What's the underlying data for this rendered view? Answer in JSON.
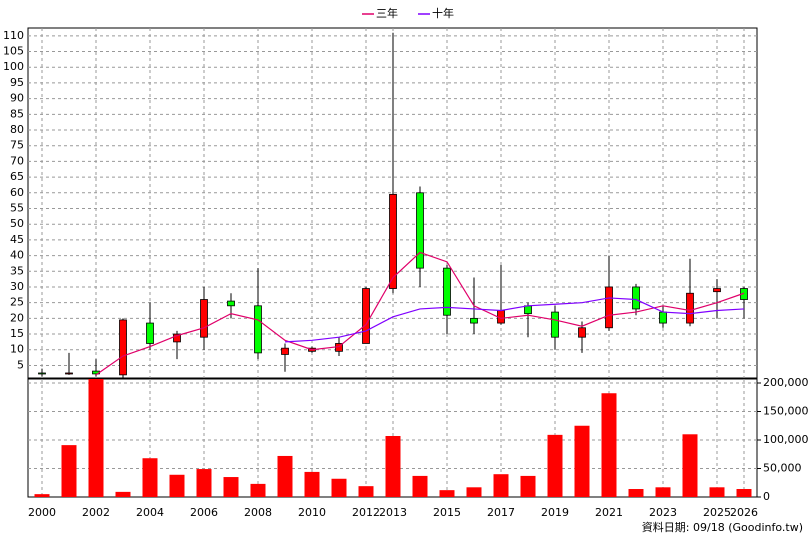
{
  "chart_data": [
    {
      "type": "candlestick",
      "open": [
        2.6,
        2.4,
        3.2,
        2,
        18.5,
        12.5,
        14,
        25.5,
        24,
        8.5,
        9.5,
        9.5,
        12,
        29.5,
        60,
        36,
        20,
        18.5,
        24,
        22,
        14,
        17,
        30,
        22,
        18.5,
        28.5,
        29.5
      ],
      "high": [
        4,
        9,
        7,
        20,
        25,
        16,
        30,
        28,
        36,
        12,
        11,
        14,
        30,
        111,
        62,
        37,
        33,
        37,
        25,
        24,
        19,
        40,
        31,
        24,
        39,
        32.5,
        30
      ],
      "low": [
        1.5,
        2,
        1.5,
        1,
        10,
        7,
        10,
        20,
        7,
        3,
        9,
        8,
        12,
        28,
        30,
        15,
        15,
        18,
        14,
        10,
        9,
        16,
        21,
        17,
        17.5,
        20,
        20
      ],
      "close": [
        2.4,
        2.6,
        2.3,
        19.5,
        12,
        15,
        26,
        24,
        9,
        10.5,
        10.5,
        12,
        29.5,
        59.5,
        36,
        21,
        18.5,
        22.5,
        21.5,
        14,
        17,
        30,
        23,
        18.5,
        28,
        29.5,
        26
      ],
      "up_color": "#ff0000",
      "down_color": "#00ff00",
      "series": [
        {
          "name": "三年",
          "color": "#e0006a",
          "values": [
            null,
            null,
            2,
            8,
            11,
            14.5,
            17,
            21.5,
            19.5,
            13,
            10,
            11,
            18,
            33,
            41,
            38,
            24,
            20,
            21,
            19.5,
            17.5,
            21,
            22,
            24,
            22.5,
            25,
            28
          ]
        },
        {
          "name": "十年",
          "color": "#8000ff",
          "values": [
            null,
            null,
            null,
            null,
            null,
            null,
            null,
            null,
            null,
            12.5,
            13,
            14,
            16,
            20.5,
            23,
            23.5,
            23,
            22.5,
            24,
            24.5,
            25,
            26.5,
            26,
            22,
            21.5,
            22.5,
            23
          ]
        }
      ],
      "ylim": [
        1,
        112.5
      ],
      "yticks": [
        5,
        10,
        15,
        20,
        25,
        30,
        35,
        40,
        45,
        50,
        55,
        60,
        65,
        70,
        75,
        80,
        85,
        90,
        95,
        100,
        105,
        110
      ],
      "grid": true
    },
    {
      "type": "bar",
      "color": "#ff0000",
      "categories": [
        "2000",
        null,
        "2002",
        null,
        "2004",
        null,
        "2006",
        null,
        "2008",
        null,
        "2010",
        null,
        "2012",
        "2013",
        null,
        "2015",
        null,
        "2017",
        null,
        "2019",
        null,
        "2021",
        null,
        "2023",
        null,
        "2025",
        "2026"
      ],
      "values": [
        5000,
        91000,
        207000,
        9000,
        68000,
        39000,
        49000,
        35000,
        23000,
        72000,
        44000,
        32000,
        19000,
        107000,
        37000,
        12000,
        17000,
        40000,
        37000,
        109000,
        125000,
        182000,
        14000,
        17000,
        110000,
        17000,
        14000
      ],
      "ylim": [
        0,
        207000
      ],
      "yticks": [
        0,
        {
          "value": 50000,
          "label": "50,000"
        },
        {
          "value": 100000,
          "label": "100,000"
        },
        {
          "value": 150000,
          "label": "150,000"
        },
        {
          "value": 200000,
          "label": "200,000"
        }
      ],
      "grid": true
    },
    {
      "type": "footer",
      "text": "資料日期: 09/18  (Goodinfo.tw)"
    }
  ]
}
